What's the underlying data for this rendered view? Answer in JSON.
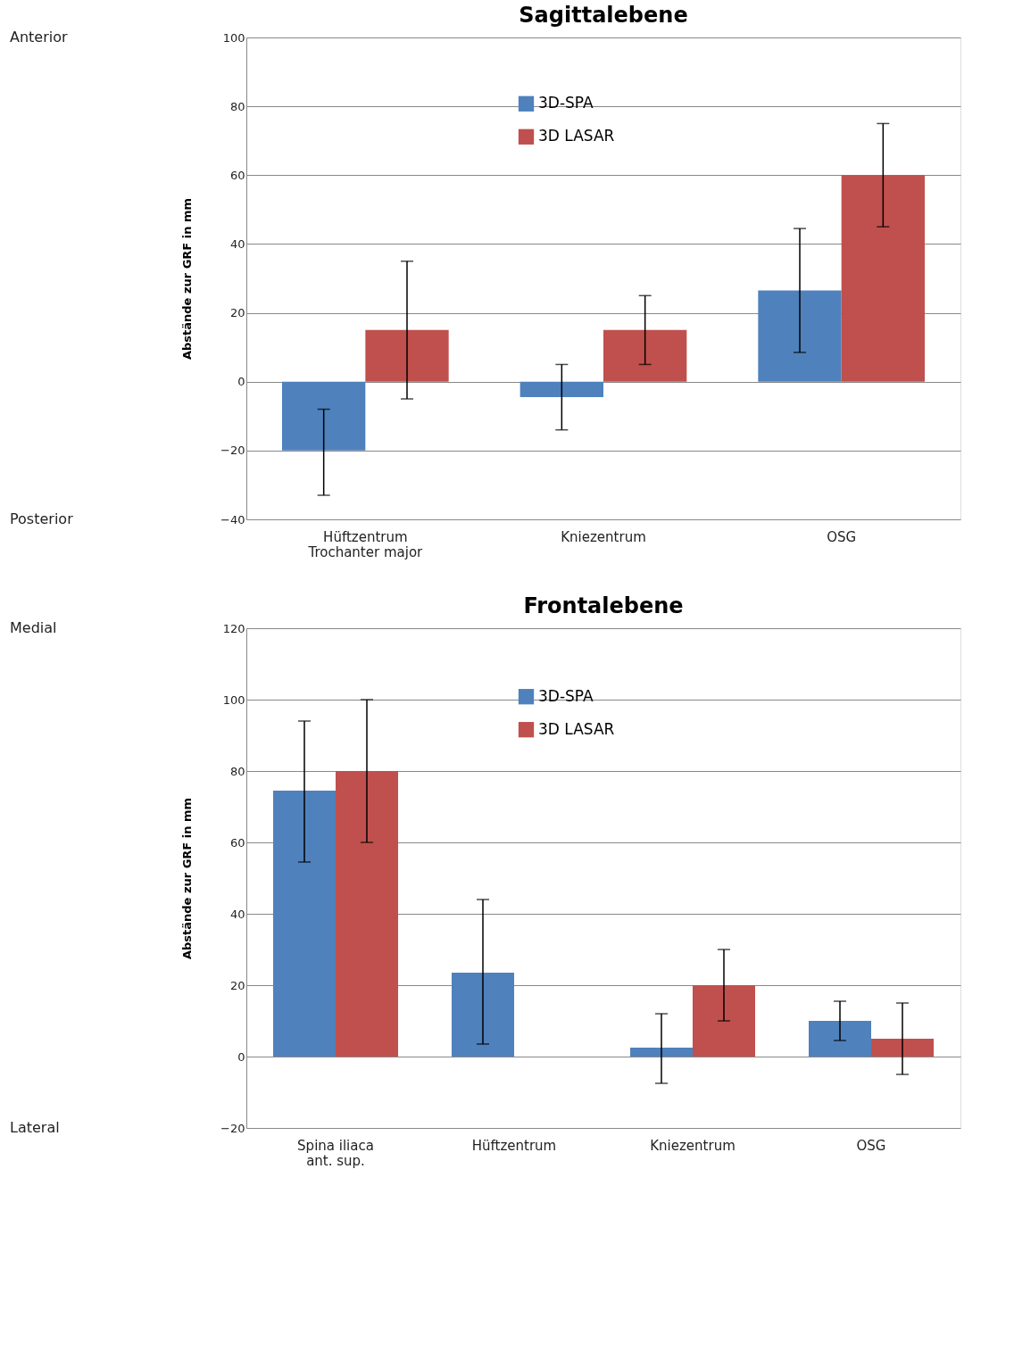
{
  "chart_data": [
    {
      "type": "bar",
      "title": "Sagittalebene",
      "ylabel": "Abstände zur GRF in mm",
      "categories": [
        "Hüftzentrum\nTrochanter major",
        "Kniezentrum",
        "OSG"
      ],
      "series": [
        {
          "name": "3D-SPA",
          "color": "#4f81bd",
          "values": [
            -20,
            -4.5,
            26.5
          ],
          "errors": [
            [
              -33,
              -8
            ],
            [
              -14,
              5
            ],
            [
              8.5,
              44.5
            ]
          ]
        },
        {
          "name": "3D LASAR",
          "color": "#c0504d",
          "values": [
            15,
            15,
            60
          ],
          "errors": [
            [
              -5,
              35
            ],
            [
              5,
              25
            ],
            [
              45,
              75
            ]
          ]
        }
      ],
      "ylim": [
        -40,
        100
      ],
      "yticks": [
        -40,
        -20,
        0,
        20,
        40,
        60,
        80,
        100
      ],
      "grid": "y",
      "legend": "top",
      "annotations": [
        "Anterior",
        "Posterior"
      ]
    },
    {
      "type": "bar",
      "title": "Frontalebene",
      "ylabel": "Abstände zur GRF in mm",
      "categories": [
        "Spina iliaca\nant. sup.",
        "Hüftzentrum",
        "Kniezentrum",
        "OSG"
      ],
      "series": [
        {
          "name": "3D-SPA",
          "color": "#4f81bd",
          "values": [
            74.5,
            23.5,
            2.5,
            10
          ],
          "errors": [
            [
              54.5,
              94
            ],
            [
              3.5,
              44
            ],
            [
              -7.5,
              12
            ],
            [
              4.5,
              15.5
            ]
          ]
        },
        {
          "name": "3D LASAR",
          "color": "#c0504d",
          "values": [
            80,
            null,
            20,
            5
          ],
          "errors": [
            [
              60,
              100
            ],
            null,
            [
              10,
              30
            ],
            [
              -5,
              15
            ]
          ]
        }
      ],
      "ylim": [
        -20,
        120
      ],
      "yticks": [
        -20,
        0,
        20,
        40,
        60,
        80,
        100,
        120
      ],
      "grid": "y",
      "legend": "top",
      "annotations": [
        "Medial",
        "Lateral"
      ]
    }
  ]
}
